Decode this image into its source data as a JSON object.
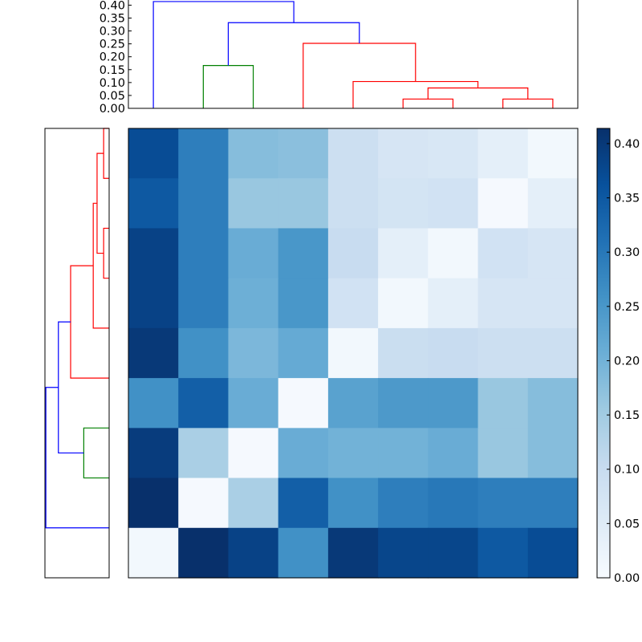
{
  "chart_data": [
    {
      "type": "dendrogram",
      "orientation": "top",
      "n_leaves": 9,
      "ylim": [
        0.0,
        0.42
      ],
      "yticks": [
        0.0,
        0.05,
        0.1,
        0.15,
        0.2,
        0.25,
        0.3,
        0.35,
        0.4
      ],
      "ytick_labels": [
        "0.00",
        "0.05",
        "0.10",
        "0.15",
        "0.20",
        "0.25",
        "0.30",
        "0.35",
        "0.40"
      ],
      "links": [
        {
          "left_x": 6.5,
          "right_x": 7.5,
          "left_y": 0.0,
          "right_y": 0.0,
          "height": 0.036,
          "color": "#ff0000"
        },
        {
          "left_x": 8.5,
          "right_x": 9.5,
          "left_y": 0.0,
          "right_y": 0.0,
          "height": 0.036,
          "color": "#ff0000"
        },
        {
          "left_x": 7.0,
          "right_x": 9.0,
          "left_y": 0.036,
          "right_y": 0.036,
          "height": 0.079,
          "color": "#ff0000"
        },
        {
          "left_x": 5.5,
          "right_x": 8.0,
          "left_y": 0.0,
          "right_y": 0.079,
          "height": 0.104,
          "color": "#ff0000"
        },
        {
          "left_x": 4.5,
          "right_x": 6.75,
          "left_y": 0.0,
          "right_y": 0.104,
          "height": 0.252,
          "color": "#ff0000"
        },
        {
          "left_x": 2.5,
          "right_x": 3.5,
          "left_y": 0.0,
          "right_y": 0.0,
          "height": 0.166,
          "color": "#008000"
        },
        {
          "left_x": 3.0,
          "right_x": 5.625,
          "left_y": 0.166,
          "right_y": 0.252,
          "height": 0.332,
          "color": "#0000ff"
        },
        {
          "left_x": 1.5,
          "right_x": 4.3125,
          "left_y": 0.0,
          "right_y": 0.332,
          "height": 0.414,
          "color": "#0000ff"
        }
      ]
    },
    {
      "type": "dendrogram",
      "orientation": "left",
      "n_leaves": 9,
      "xlim": [
        0.42,
        0.0
      ],
      "links": [
        {
          "top_y": 1.0,
          "bottom_y": 2.0,
          "top_x": 0.0,
          "bottom_x": 0.0,
          "height": 0.036,
          "color": "#ff0000"
        },
        {
          "top_y": 3.0,
          "bottom_y": 4.0,
          "top_x": 0.0,
          "bottom_x": 0.0,
          "height": 0.036,
          "color": "#ff0000"
        },
        {
          "top_y": 1.5,
          "bottom_y": 3.5,
          "top_x": 0.036,
          "bottom_x": 0.036,
          "height": 0.079,
          "color": "#ff0000"
        },
        {
          "top_y": 2.5,
          "bottom_y": 5.0,
          "top_x": 0.079,
          "bottom_x": 0.0,
          "height": 0.104,
          "color": "#ff0000"
        },
        {
          "top_y": 3.75,
          "bottom_y": 6.0,
          "top_x": 0.104,
          "bottom_x": 0.0,
          "height": 0.252,
          "color": "#ff0000"
        },
        {
          "top_y": 7.0,
          "bottom_y": 8.0,
          "top_x": 0.0,
          "bottom_x": 0.0,
          "height": 0.166,
          "color": "#008000"
        },
        {
          "top_y": 4.875,
          "bottom_y": 7.5,
          "top_x": 0.252,
          "bottom_x": 0.166,
          "height": 0.332,
          "color": "#0000ff"
        },
        {
          "top_y": 6.1875,
          "bottom_y": 9.0,
          "top_x": 0.332,
          "bottom_x": 0.0,
          "height": 0.414,
          "color": "#0000ff"
        }
      ]
    },
    {
      "type": "heatmap",
      "colormap": "Blues",
      "vmin": 0.0,
      "vmax": 0.414,
      "rows": 9,
      "cols": 9,
      "values": [
        [
          0.37,
          0.29,
          0.18,
          0.175,
          0.09,
          0.07,
          0.065,
          0.04,
          0.01
        ],
        [
          0.35,
          0.29,
          0.16,
          0.16,
          0.09,
          0.075,
          0.08,
          0.005,
          0.04
        ],
        [
          0.385,
          0.29,
          0.21,
          0.25,
          0.1,
          0.04,
          0.01,
          0.08,
          0.07
        ],
        [
          0.385,
          0.29,
          0.205,
          0.25,
          0.08,
          0.01,
          0.04,
          0.07,
          0.07
        ],
        [
          0.4,
          0.26,
          0.19,
          0.215,
          0.01,
          0.095,
          0.1,
          0.09,
          0.09
        ],
        [
          0.26,
          0.34,
          0.21,
          0.005,
          0.23,
          0.245,
          0.245,
          0.16,
          0.18
        ],
        [
          0.395,
          0.14,
          0.005,
          0.21,
          0.2,
          0.2,
          0.21,
          0.16,
          0.18
        ],
        [
          0.414,
          0.005,
          0.14,
          0.34,
          0.26,
          0.29,
          0.3,
          0.29,
          0.29
        ],
        [
          0.01,
          0.414,
          0.385,
          0.26,
          0.4,
          0.38,
          0.38,
          0.35,
          0.37
        ]
      ]
    },
    {
      "type": "colorbar",
      "colormap": "Blues",
      "ylim": [
        0.0,
        0.414
      ],
      "ticks": [
        0.0,
        0.05,
        0.1,
        0.15,
        0.2,
        0.25,
        0.3,
        0.35,
        0.4
      ],
      "tick_labels": [
        "0.00",
        "0.05",
        "0.10",
        "0.15",
        "0.20",
        "0.25",
        "0.30",
        "0.35",
        "0.40"
      ]
    }
  ]
}
